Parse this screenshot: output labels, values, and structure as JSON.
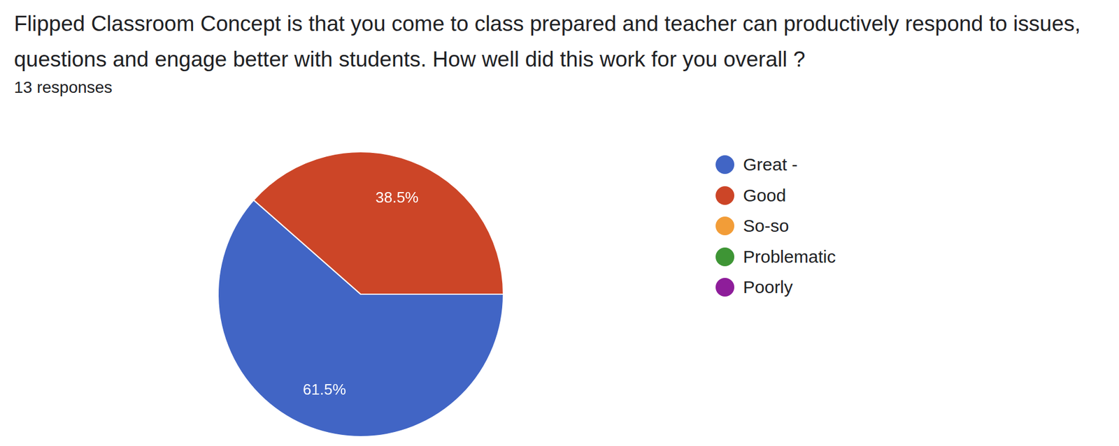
{
  "chart_data": {
    "type": "pie",
    "title": "Flipped Classroom Concept is that you come to class prepared and teacher can productively respond to issues, questions and engage better with students. How well did this work for you overall ?",
    "subtitle": "13 responses",
    "categories": [
      "Great -",
      "Good",
      "So-so",
      "Problematic",
      "Poorly"
    ],
    "values": [
      61.5,
      38.5,
      0,
      0,
      0
    ],
    "value_labels": [
      "61.5%",
      "38.5%",
      null,
      null,
      null
    ],
    "colors": [
      "#4165c5",
      "#cc4527",
      "#f29d38",
      "#3e9535",
      "#8e1d9a"
    ],
    "legend": "right",
    "data_labels": true
  }
}
